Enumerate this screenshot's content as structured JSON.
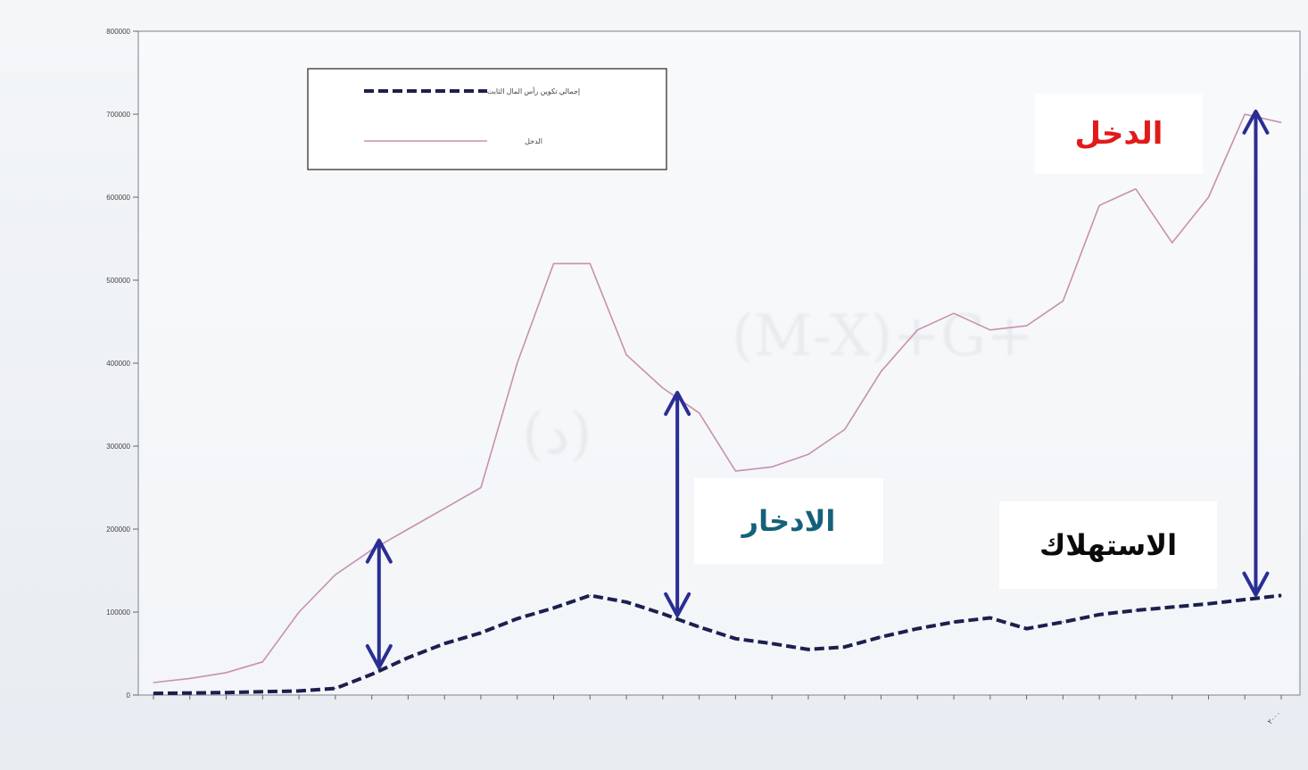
{
  "chart_data": {
    "type": "line",
    "ylim": [
      0,
      800000
    ],
    "yticks": [
      0,
      100000,
      200000,
      300000,
      400000,
      500000,
      600000,
      700000,
      800000
    ],
    "ytick_labels": [
      "0",
      "100000",
      "200000",
      "300000",
      "400000",
      "500000",
      "600000",
      "700000",
      "800000"
    ],
    "n_points": 32,
    "xtick_labels": [
      "",
      "",
      "",
      "",
      "",
      "",
      "",
      "",
      "",
      "",
      "",
      "",
      "",
      "",
      "",
      "",
      "",
      "",
      "",
      "",
      "",
      "",
      "",
      "",
      "",
      "",
      "",
      "",
      "",
      "",
      "",
      "٢٠٠٠"
    ],
    "legend": {
      "position": "top-left",
      "entries": [
        "إجمالي تكوين رأس المال الثابت",
        "الدخل"
      ]
    },
    "grid": false,
    "series": [
      {
        "name": "إجمالي تكوين رأس المال الثابت",
        "style": "dashed",
        "color": "#1c1f4e",
        "values": [
          2000,
          2500,
          3000,
          4000,
          5000,
          8000,
          25000,
          45000,
          62000,
          75000,
          92000,
          105000,
          120000,
          112000,
          98000,
          82000,
          68000,
          62000,
          55000,
          58000,
          70000,
          80000,
          88000,
          93000,
          80000,
          88000,
          97000,
          102000,
          106000,
          110000,
          115000,
          120000
        ]
      },
      {
        "name": "الدخل",
        "style": "solid",
        "color": "#c890b0",
        "values": [
          15000,
          20000,
          27000,
          40000,
          100000,
          145000,
          175000,
          200000,
          225000,
          250000,
          400000,
          520000,
          520000,
          410000,
          370000,
          340000,
          270000,
          275000,
          290000,
          320000,
          390000,
          440000,
          460000,
          440000,
          445000,
          475000,
          590000,
          610000,
          545000,
          600000,
          700000,
          690000
        ]
      }
    ]
  },
  "annotations": {
    "income_label": "الدخل",
    "saving_label": "الادخار",
    "consumption_label": "الاستهلاك",
    "accent_colors": {
      "income": "#e21a1a",
      "saving": "#15607a",
      "consumption": "#0b0b0b",
      "arrow": "#2a2e93"
    }
  }
}
